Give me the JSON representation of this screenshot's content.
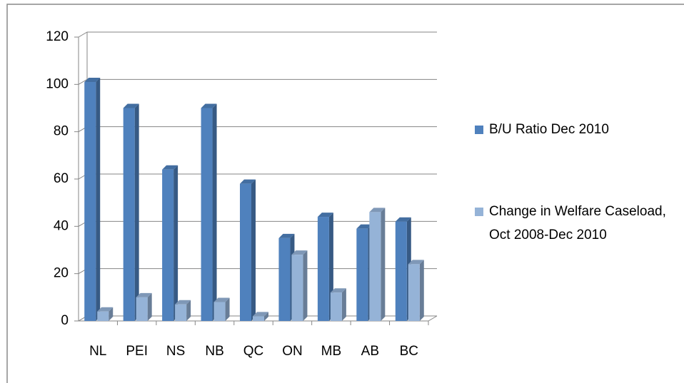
{
  "chart_data": {
    "type": "bar3d",
    "categories": [
      "NL",
      "PEI",
      "NS",
      "NB",
      "QC",
      "ON",
      "MB",
      "AB",
      "BC"
    ],
    "series": [
      {
        "name": "B/U Ratio Dec 2010",
        "color": "#4f81bd",
        "values": [
          101,
          90,
          64,
          90,
          58,
          35,
          44,
          39,
          42
        ]
      },
      {
        "name": "Change in Welfare Caseload, Oct 2008-Dec 2010",
        "color": "#95b3d7",
        "values": [
          4,
          10,
          7,
          8,
          2,
          28,
          12,
          46,
          24
        ]
      }
    ],
    "ylim": [
      0,
      120
    ],
    "yticks": [
      0,
      20,
      40,
      60,
      80,
      100,
      120
    ],
    "grid": true,
    "legend": "right"
  }
}
